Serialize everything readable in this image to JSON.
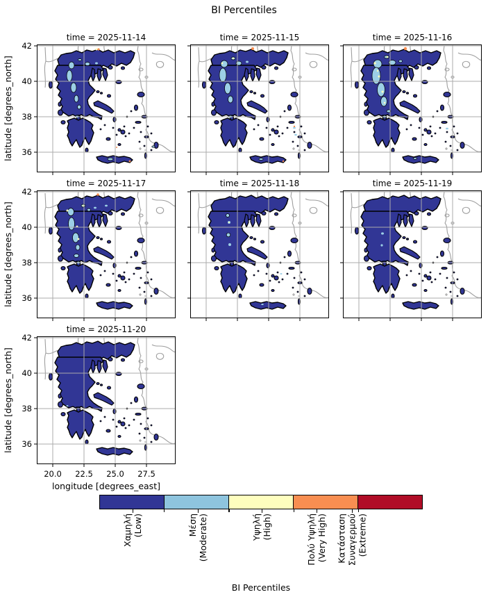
{
  "figure": {
    "suptitle": "BI Percentiles"
  },
  "axes": {
    "xlabel": "longitude [degrees_east]",
    "ylabel": "latitude [degrees_north]",
    "xticks": [
      "20.0",
      "22.5",
      "25.0",
      "27.5"
    ],
    "yticks": [
      "42",
      "40",
      "38",
      "36"
    ]
  },
  "panels": [
    {
      "title": "time = 2025-11-14",
      "moderate_extent": "northwest-patches",
      "patch_key": "p14"
    },
    {
      "title": "time = 2025-11-15",
      "moderate_extent": "northwest-patches-wider",
      "patch_key": "p15"
    },
    {
      "title": "time = 2025-11-16",
      "moderate_extent": "northwest-extensive-with-high-spots",
      "patch_key": "p16"
    },
    {
      "title": "time = 2025-11-17",
      "moderate_extent": "northwest-patches-with-high-spots",
      "patch_key": "p17"
    },
    {
      "title": "time = 2025-11-18",
      "moderate_extent": "few-small-patches",
      "patch_key": "p18"
    },
    {
      "title": "time = 2025-11-19",
      "moderate_extent": "minimal-patches",
      "patch_key": "p19"
    },
    {
      "title": "time = 2025-11-20",
      "moderate_extent": "none",
      "patch_key": "p20"
    }
  ],
  "colorbar": {
    "label": "BI Percentiles",
    "classes": [
      {
        "color": "#313695",
        "lines": [
          "Χαμηλή",
          "(Low)"
        ]
      },
      {
        "color": "#8ec4de",
        "lines": [
          "Μέση",
          "(Moderate)"
        ]
      },
      {
        "color": "#fefebe",
        "lines": [
          "Υψηλή",
          "(High)"
        ]
      },
      {
        "color": "#f88e51",
        "lines": [
          "Πολύ Υψηλή",
          "(Very High)"
        ]
      },
      {
        "color": "#b00d27",
        "lines": [
          "Κατάσταση",
          "Συναγερμού",
          "(Extreme)"
        ]
      }
    ]
  },
  "map_colors": {
    "land_low": "#313695",
    "moderate": "#9ccfe6",
    "high": "#fefebe",
    "very_high": "#f88e51",
    "coastline_context": "#9e9e9e",
    "gridline": "#ababab",
    "contour": "#000000"
  },
  "chart_data": {
    "type": "heatmap",
    "title": "BI Percentiles",
    "facet_titles": [
      "time = 2025-11-14",
      "time = 2025-11-15",
      "time = 2025-11-16",
      "time = 2025-11-17",
      "time = 2025-11-18",
      "time = 2025-11-19",
      "time = 2025-11-20"
    ],
    "xlabel": "longitude [degrees_east]",
    "ylabel": "latitude [degrees_north]",
    "xticks": [
      20.0,
      22.5,
      25.0,
      27.5
    ],
    "yticks": [
      36,
      38,
      40,
      42
    ],
    "xlim": [
      18.7,
      29.9
    ],
    "ylim": [
      34.6,
      42.1
    ],
    "grid": true,
    "legend_position": "bottom-horizontal-colorbar",
    "categories": [
      "Χαμηλή (Low)",
      "Μέση (Moderate)",
      "Υψηλή (High)",
      "Πολύ Υψηλή (Very High)",
      "Κατάσταση Συναγερμού (Extreme)"
    ],
    "category_colors": [
      "#313695",
      "#8ec4de",
      "#fefebe",
      "#f88e51",
      "#b00d27"
    ],
    "series": [
      {
        "name": "2025-11-14",
        "dominant_class": "Χαμηλή (Low)",
        "secondary": "Μέση patches in NW Greece and central Crete"
      },
      {
        "name": "2025-11-15",
        "dominant_class": "Χαμηλή (Low)",
        "secondary": "Μέση band over NW/central Greece"
      },
      {
        "name": "2025-11-16",
        "dominant_class": "Χαμηλή (Low)",
        "secondary": "largest Μέση band NW-central with Υψηλή spots"
      },
      {
        "name": "2025-11-17",
        "dominant_class": "Χαμηλή (Low)",
        "secondary": "Μέση patches NW with Υψηλή spots"
      },
      {
        "name": "2025-11-18",
        "dominant_class": "Χαμηλή (Low)",
        "secondary": "few small Μέση patches"
      },
      {
        "name": "2025-11-19",
        "dominant_class": "Χαμηλή (Low)",
        "secondary": "isolated tiny Μέση patches"
      },
      {
        "name": "2025-11-20",
        "dominant_class": "Χαμηλή (Low)",
        "secondary": "none"
      }
    ]
  }
}
